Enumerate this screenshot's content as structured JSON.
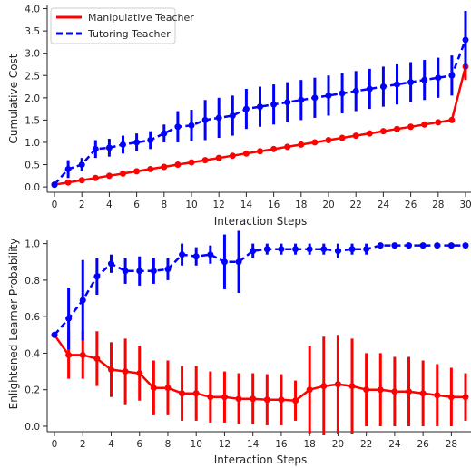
{
  "colors": {
    "manipulative": "#ff0000",
    "tutoring": "#0000ff",
    "axis": "#262626"
  },
  "chart_data": [
    {
      "type": "line",
      "xlabel": "Interaction Steps",
      "ylabel": "Cumulative Cost",
      "xlim": [
        0,
        30
      ],
      "ylim": [
        0,
        4.0
      ],
      "x_ticks": [
        0,
        2,
        4,
        6,
        8,
        10,
        12,
        14,
        16,
        18,
        20,
        22,
        24,
        26,
        28,
        30
      ],
      "y_ticks": [
        0.0,
        0.5,
        1.0,
        1.5,
        2.0,
        2.5,
        3.0,
        3.5,
        4.0
      ],
      "y_tick_labels": [
        "0.0",
        "0.5",
        "1.0",
        "1.5",
        "2.0",
        "2.5",
        "3.0",
        "3.5",
        "4.0"
      ],
      "grid": false,
      "legend_position": "top-left",
      "x": [
        0,
        1,
        2,
        3,
        4,
        5,
        6,
        7,
        8,
        9,
        10,
        11,
        12,
        13,
        14,
        15,
        16,
        17,
        18,
        19,
        20,
        21,
        22,
        23,
        24,
        25,
        26,
        27,
        28,
        29,
        30
      ],
      "series": [
        {
          "name": "Manipulative Teacher",
          "style": "solid",
          "values": [
            0.05,
            0.1,
            0.15,
            0.2,
            0.25,
            0.3,
            0.35,
            0.4,
            0.45,
            0.5,
            0.55,
            0.6,
            0.65,
            0.7,
            0.75,
            0.8,
            0.85,
            0.9,
            0.95,
            1.0,
            1.05,
            1.1,
            1.15,
            1.2,
            1.25,
            1.3,
            1.35,
            1.4,
            1.45,
            1.5,
            2.7
          ],
          "errors": [
            0,
            0,
            0,
            0,
            0,
            0,
            0,
            0,
            0,
            0,
            0,
            0,
            0,
            0,
            0,
            0,
            0,
            0,
            0,
            0,
            0,
            0,
            0,
            0,
            0,
            0,
            0,
            0,
            0,
            0,
            0.3
          ]
        },
        {
          "name": "Tutoring Teacher",
          "style": "dashed",
          "values": [
            0.05,
            0.4,
            0.5,
            0.85,
            0.88,
            0.95,
            1.0,
            1.05,
            1.2,
            1.35,
            1.38,
            1.5,
            1.55,
            1.6,
            1.75,
            1.8,
            1.85,
            1.9,
            1.95,
            2.0,
            2.05,
            2.1,
            2.15,
            2.2,
            2.25,
            2.3,
            2.35,
            2.4,
            2.45,
            2.5,
            3.3
          ],
          "errors": [
            0.05,
            0.2,
            0.15,
            0.2,
            0.2,
            0.2,
            0.2,
            0.2,
            0.2,
            0.35,
            0.35,
            0.45,
            0.45,
            0.45,
            0.45,
            0.45,
            0.45,
            0.45,
            0.45,
            0.45,
            0.45,
            0.45,
            0.45,
            0.45,
            0.45,
            0.45,
            0.45,
            0.45,
            0.45,
            0.45,
            0.65
          ]
        }
      ]
    },
    {
      "type": "line",
      "xlabel": "Interaction Steps",
      "ylabel": "Enlightened Learner Probability",
      "xlim": [
        0,
        29
      ],
      "ylim": [
        0,
        1.0
      ],
      "x_ticks": [
        0,
        2,
        4,
        6,
        8,
        10,
        12,
        14,
        16,
        18,
        20,
        22,
        24,
        26,
        28
      ],
      "y_ticks": [
        0.0,
        0.2,
        0.4,
        0.6,
        0.8,
        1.0
      ],
      "y_tick_labels": [
        "0.0",
        "0.2",
        "0.4",
        "0.6",
        "0.8",
        "1.0"
      ],
      "grid": false,
      "x": [
        0,
        1,
        2,
        3,
        4,
        5,
        6,
        7,
        8,
        9,
        10,
        11,
        12,
        13,
        14,
        15,
        16,
        17,
        18,
        19,
        20,
        21,
        22,
        23,
        24,
        25,
        26,
        27,
        28,
        29
      ],
      "series": [
        {
          "name": "Manipulative Teacher",
          "style": "solid",
          "values": [
            0.5,
            0.39,
            0.39,
            0.37,
            0.31,
            0.3,
            0.29,
            0.21,
            0.21,
            0.18,
            0.18,
            0.16,
            0.16,
            0.15,
            0.15,
            0.145,
            0.145,
            0.14,
            0.2,
            0.22,
            0.23,
            0.22,
            0.2,
            0.2,
            0.19,
            0.19,
            0.18,
            0.17,
            0.16,
            0.16
          ],
          "errors": [
            0,
            0.13,
            0.13,
            0.15,
            0.15,
            0.18,
            0.15,
            0.15,
            0.15,
            0.15,
            0.15,
            0.14,
            0.14,
            0.14,
            0.14,
            0.14,
            0.14,
            0.11,
            0.24,
            0.27,
            0.27,
            0.26,
            0.2,
            0.2,
            0.19,
            0.19,
            0.18,
            0.17,
            0.16,
            0.13
          ]
        },
        {
          "name": "Tutoring Teacher",
          "style": "dashed",
          "values": [
            0.5,
            0.59,
            0.69,
            0.82,
            0.89,
            0.85,
            0.85,
            0.85,
            0.86,
            0.94,
            0.93,
            0.94,
            0.9,
            0.9,
            0.96,
            0.97,
            0.97,
            0.97,
            0.97,
            0.97,
            0.96,
            0.97,
            0.97,
            0.99,
            0.99,
            0.99,
            0.99,
            0.99,
            0.99,
            0.99
          ],
          "errors": [
            0,
            0.17,
            0.22,
            0.1,
            0.05,
            0.07,
            0.08,
            0.07,
            0.06,
            0.06,
            0.05,
            0.05,
            0.15,
            0.17,
            0.04,
            0.03,
            0.03,
            0.03,
            0.03,
            0.03,
            0.04,
            0.03,
            0.03,
            0,
            0,
            0,
            0,
            0,
            0,
            0
          ]
        }
      ]
    }
  ]
}
